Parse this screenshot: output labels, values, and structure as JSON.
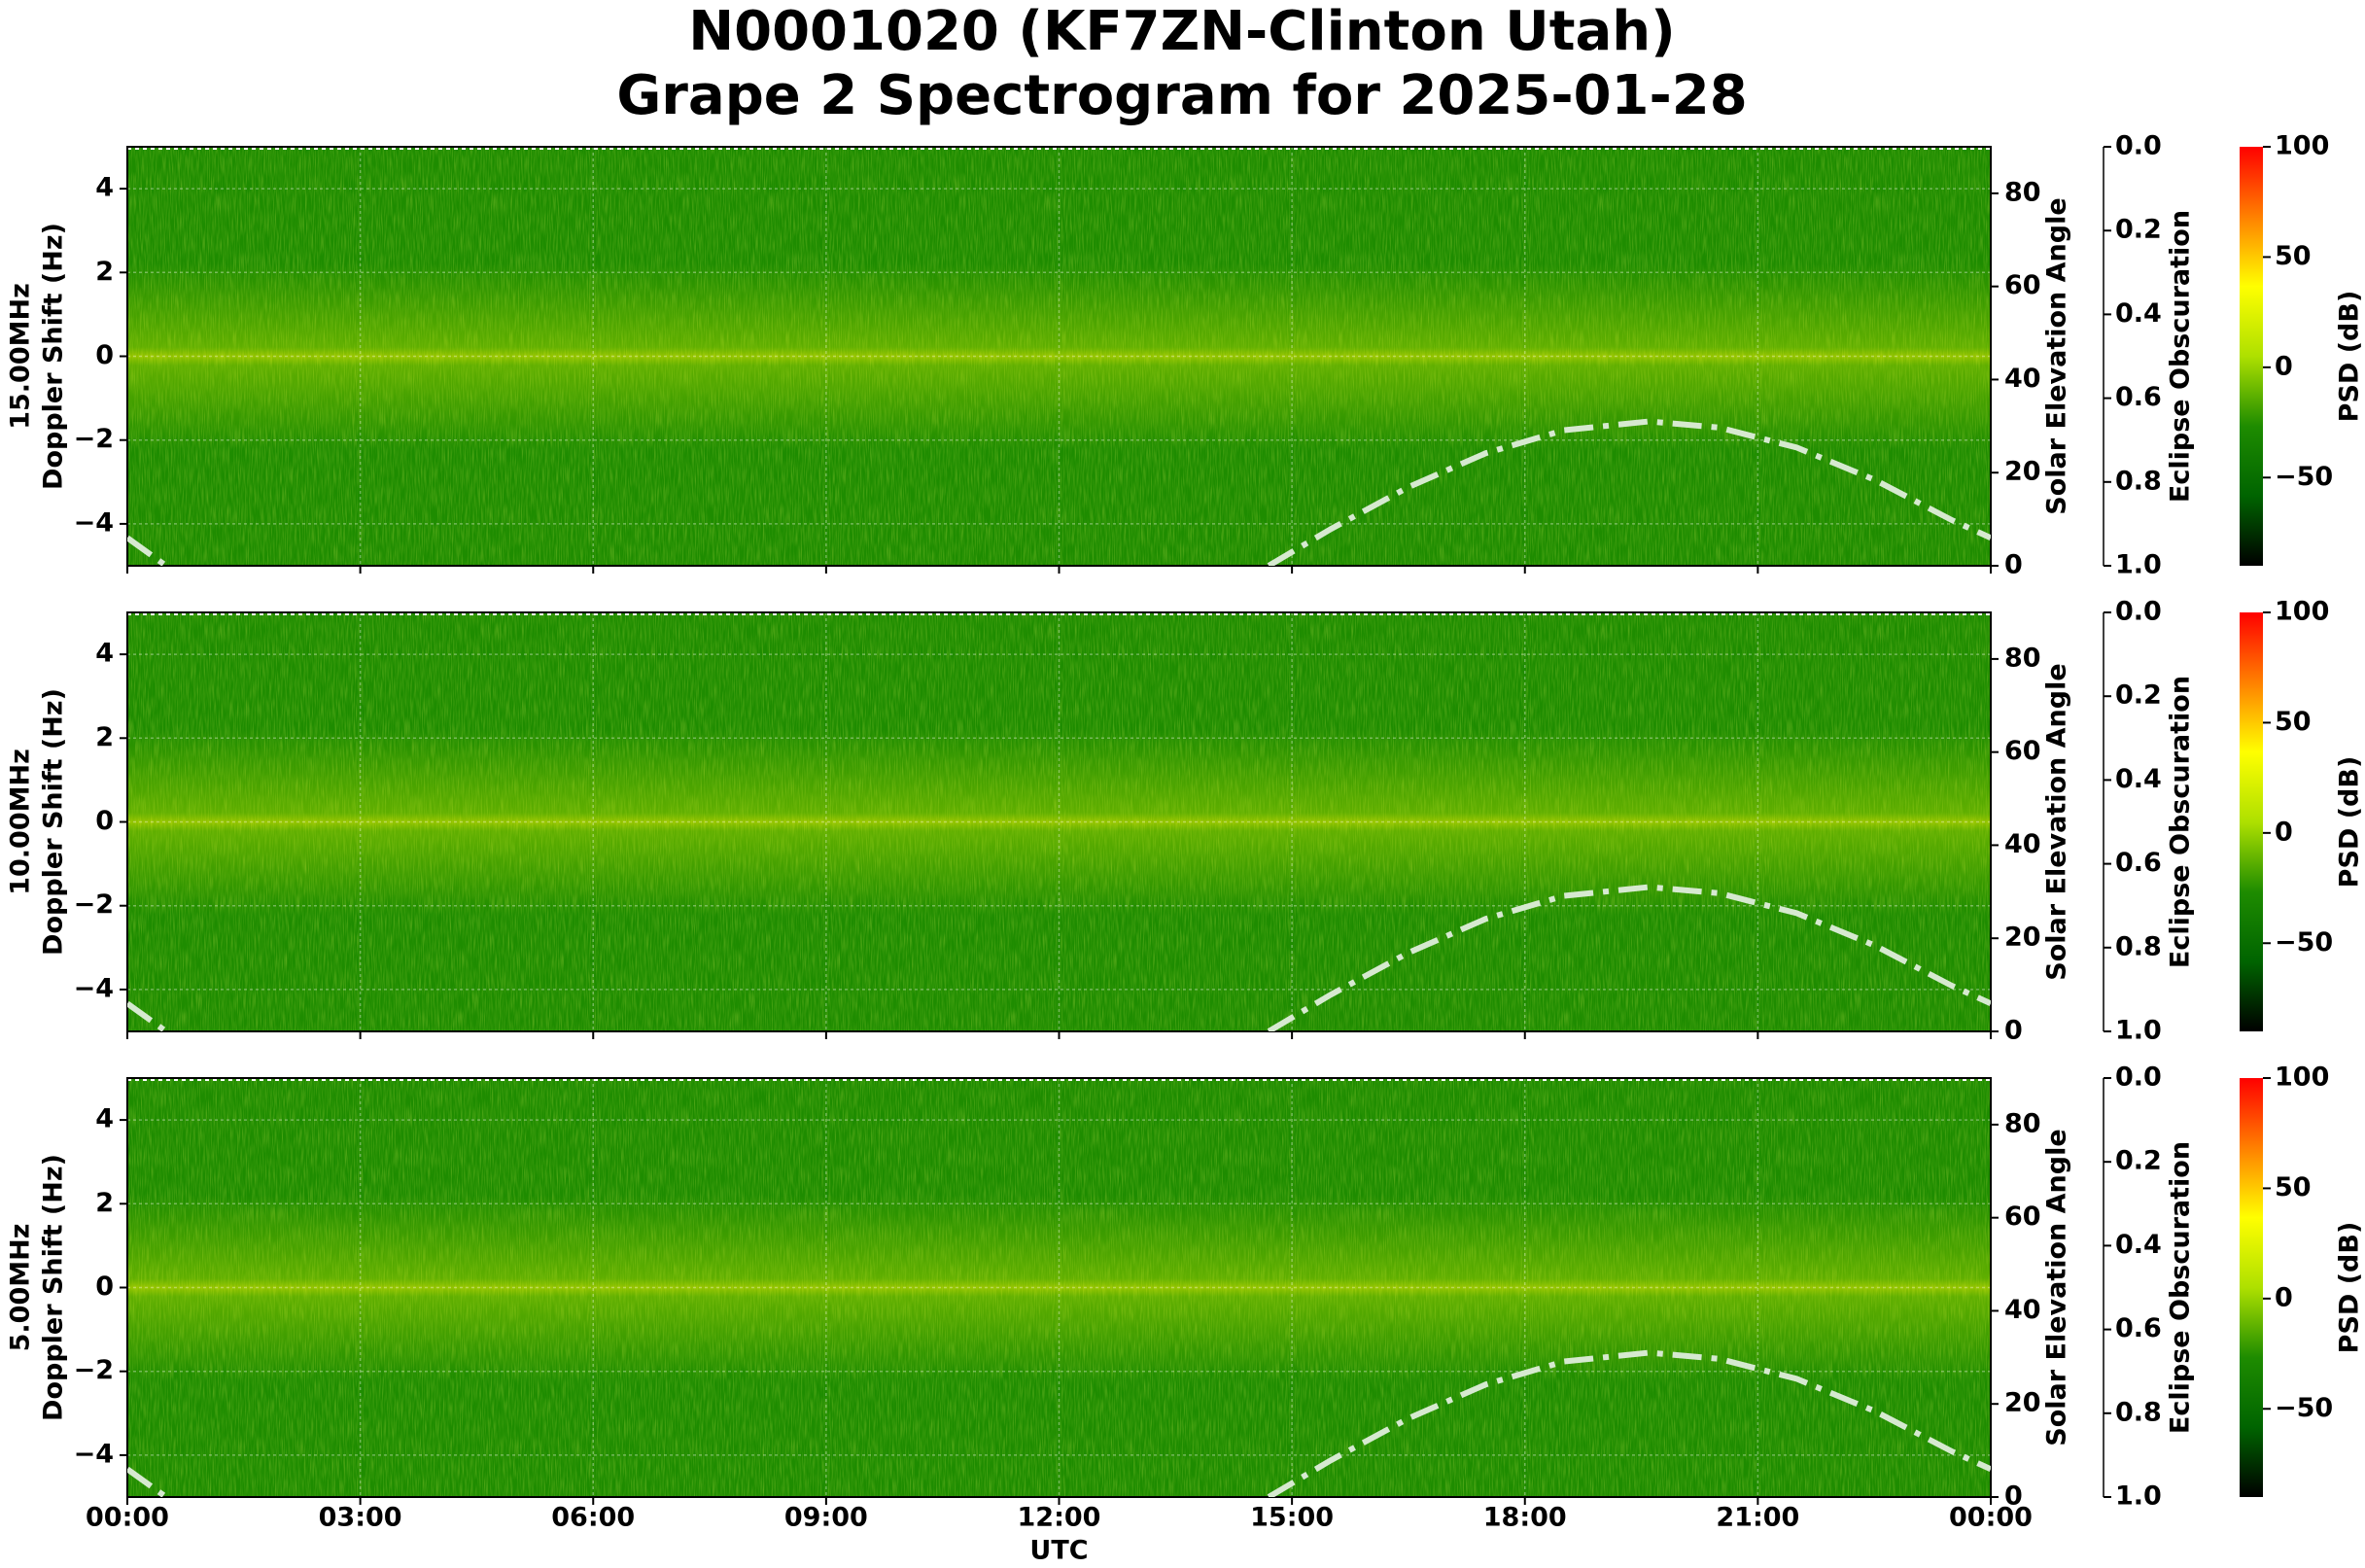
{
  "title": [
    "N0001020 (KF7ZN-Clinton Utah)",
    "Grape 2 Spectrogram for 2025-01-28"
  ],
  "chart_data": [
    {
      "type": "spectrogram",
      "ylabel": [
        "15.00MHz",
        "Doppler Shift (Hz)"
      ],
      "ylim": [
        -5,
        5
      ],
      "yticks": [
        {
          "value": -4,
          "label": "−4"
        },
        {
          "value": -2,
          "label": "−2"
        },
        0,
        2,
        4
      ],
      "y2label": "Solar Elevation Angle",
      "y2lim": [
        0,
        90
      ],
      "y2ticks": [
        0,
        20,
        40,
        60,
        80
      ],
      "y3label": "Eclipse Obscuration",
      "y3lim": [
        1,
        0
      ],
      "y3ticks": [
        {
          "value": 0,
          "label": "0.0"
        },
        0.2,
        0.4,
        0.6,
        0.8,
        {
          "value": 1,
          "label": "1.0"
        }
      ],
      "colorbar_label": "PSD (dB)",
      "clim": [
        -90,
        100
      ],
      "cticks": [
        {
          "value": -50,
          "label": "−50"
        },
        0,
        50,
        100
      ],
      "colormap": [
        "#000000",
        "#006400",
        "#1e8c00",
        "#aee000",
        "#ffff00",
        "#ff8000",
        "#ff0000"
      ],
      "grid": true,
      "series": [
        {
          "color": "#d6e9d0",
          "axis": "y2",
          "linestyle": "dash-dot",
          "x": [
            0,
            0.5,
            7,
            14.7,
            15.5,
            16.5,
            17.5,
            18.5,
            19.6,
            20.5,
            21.5,
            22.5,
            23.5,
            24
          ],
          "values": [
            6,
            0,
            null,
            0,
            7.9,
            16.9,
            24.2,
            29.1,
            31,
            29.7,
            25.4,
            18.5,
            9.8,
            6
          ]
        }
      ]
    },
    {
      "type": "spectrogram",
      "ylabel": [
        "10.00MHz",
        "Doppler Shift (Hz)"
      ],
      "ylim": [
        -5,
        5
      ],
      "yticks": [
        {
          "value": -4,
          "label": "−4"
        },
        {
          "value": -2,
          "label": "−2"
        },
        0,
        2,
        4
      ],
      "y2label": "Solar Elevation Angle",
      "y2lim": [
        0,
        90
      ],
      "y2ticks": [
        0,
        20,
        40,
        60,
        80
      ],
      "y3label": "Eclipse Obscuration",
      "y3lim": [
        1,
        0
      ],
      "y3ticks": [
        {
          "value": 0,
          "label": "0.0"
        },
        0.2,
        0.4,
        0.6,
        0.8,
        {
          "value": 1,
          "label": "1.0"
        }
      ],
      "colorbar_label": "PSD (dB)",
      "clim": [
        -90,
        100
      ],
      "cticks": [
        {
          "value": -50,
          "label": "−50"
        },
        0,
        50,
        100
      ],
      "colormap": [
        "#000000",
        "#006400",
        "#1e8c00",
        "#aee000",
        "#ffff00",
        "#ff8000",
        "#ff0000"
      ],
      "grid": true,
      "series": [
        {
          "color": "#d6e9d0",
          "axis": "y2",
          "linestyle": "dash-dot",
          "x": [
            0,
            0.5,
            7,
            14.7,
            15.5,
            16.5,
            17.5,
            18.5,
            19.6,
            20.5,
            21.5,
            22.5,
            23.5,
            24
          ],
          "values": [
            6,
            0,
            null,
            0,
            7.9,
            16.9,
            24.2,
            29.1,
            31,
            29.7,
            25.4,
            18.5,
            9.8,
            6
          ]
        }
      ]
    },
    {
      "type": "spectrogram",
      "ylabel": [
        "5.00MHz",
        "Doppler Shift (Hz)"
      ],
      "ylim": [
        -5,
        5
      ],
      "yticks": [
        {
          "value": -4,
          "label": "−4"
        },
        {
          "value": -2,
          "label": "−2"
        },
        0,
        2,
        4
      ],
      "y2label": "Solar Elevation Angle",
      "y2lim": [
        0,
        90
      ],
      "y2ticks": [
        0,
        20,
        40,
        60,
        80
      ],
      "y3label": "Eclipse Obscuration",
      "y3lim": [
        1,
        0
      ],
      "y3ticks": [
        {
          "value": 0,
          "label": "0.0"
        },
        0.2,
        0.4,
        0.6,
        0.8,
        {
          "value": 1,
          "label": "1.0"
        }
      ],
      "colorbar_label": "PSD (dB)",
      "clim": [
        -90,
        100
      ],
      "cticks": [
        {
          "value": -50,
          "label": "−50"
        },
        0,
        50,
        100
      ],
      "colormap": [
        "#000000",
        "#006400",
        "#1e8c00",
        "#aee000",
        "#ffff00",
        "#ff8000",
        "#ff0000"
      ],
      "grid": true,
      "xlabel": "UTC",
      "xlim": [
        0,
        24
      ],
      "xticks": [
        {
          "value": 0,
          "label": "00:00"
        },
        {
          "value": 3,
          "label": "03:00"
        },
        {
          "value": 6,
          "label": "06:00"
        },
        {
          "value": 9,
          "label": "09:00"
        },
        {
          "value": 12,
          "label": "12:00"
        },
        {
          "value": 15,
          "label": "15:00"
        },
        {
          "value": 18,
          "label": "18:00"
        },
        {
          "value": 21,
          "label": "21:00"
        },
        {
          "value": 24,
          "label": "00:00"
        }
      ],
      "series": [
        {
          "color": "#d6e9d0",
          "axis": "y2",
          "linestyle": "dash-dot",
          "x": [
            0,
            0.5,
            7,
            14.7,
            15.5,
            16.5,
            17.5,
            18.5,
            19.6,
            20.5,
            21.5,
            22.5,
            23.5,
            24
          ],
          "values": [
            6,
            0,
            null,
            0,
            7.9,
            16.9,
            24.2,
            29.1,
            31,
            29.7,
            25.4,
            18.5,
            9.8,
            6
          ]
        }
      ]
    }
  ]
}
